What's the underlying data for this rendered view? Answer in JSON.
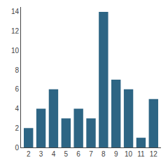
{
  "chart_data": {
    "type": "bar",
    "x": [
      2,
      3,
      4,
      5,
      6,
      7,
      8,
      9,
      10,
      11,
      12
    ],
    "values": [
      2,
      4,
      6,
      3,
      4,
      3,
      14,
      7,
      6,
      1,
      5
    ],
    "color": "#2d6584",
    "xlim": [
      1.4,
      12.6
    ],
    "xticks": [
      2,
      3,
      4,
      5,
      6,
      7,
      8,
      9,
      10,
      11,
      12
    ],
    "ylim": [
      0,
      14.5
    ],
    "yticks": [
      0,
      2,
      4,
      6,
      8,
      10,
      12,
      14
    ],
    "grid": false
  }
}
